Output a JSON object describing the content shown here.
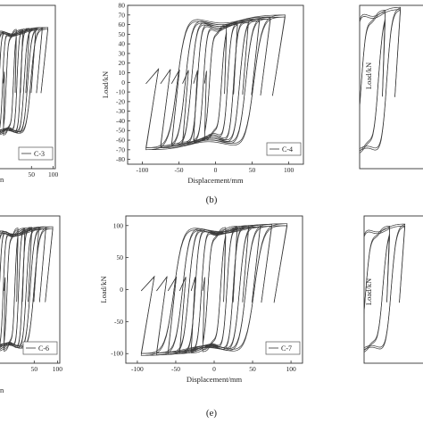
{
  "panel_labels": [
    "(b)",
    "(e)"
  ],
  "partial_texts": {
    "left_top_unit": "n",
    "left_bottom_unit": "n",
    "right_top_ylabel": "Load/kN",
    "right_bottom_ylabel": "Load/kN"
  },
  "chart_data": [
    {
      "id": "C-3",
      "type": "line",
      "title": "",
      "xlabel": "",
      "ylabel": "",
      "xlim": [
        -35,
        105
      ],
      "ylim": [
        -90,
        80
      ],
      "x_ticks": [
        50,
        100
      ],
      "legend": "C-3",
      "legend_position": "bottom-right",
      "grid": false,
      "partially_visible": true,
      "series": [
        {
          "name": "C-3",
          "cycles": [
            {
              "amp": 15,
              "peak": 55
            },
            {
              "amp": 30,
              "peak": 55
            },
            {
              "amp": 45,
              "peak": 56
            },
            {
              "amp": 60,
              "peak": 56
            },
            {
              "amp": 75,
              "peak": 57
            },
            {
              "amp": 88,
              "peak": 57
            }
          ]
        }
      ]
    },
    {
      "id": "C-4",
      "type": "line",
      "title": "",
      "xlabel": "Displacement/mm",
      "ylabel": "Load/kN",
      "xlim": [
        -120,
        120
      ],
      "ylim": [
        -85,
        80
      ],
      "x_ticks": [
        -100,
        -50,
        0,
        50,
        100
      ],
      "y_ticks": [
        -80,
        -70,
        -60,
        -50,
        -40,
        -30,
        -20,
        -10,
        0,
        10,
        20,
        30,
        40,
        50,
        60,
        70,
        80
      ],
      "legend": "C-4",
      "legend_position": "bottom-right",
      "grid": false,
      "series": [
        {
          "name": "C-4",
          "cycles": [
            {
              "amp": 15,
              "peak": 60
            },
            {
              "amp": 30,
              "peak": 62
            },
            {
              "amp": 45,
              "peak": 64
            },
            {
              "amp": 60,
              "peak": 66
            },
            {
              "amp": 75,
              "peak": 68
            },
            {
              "amp": 95,
              "peak": 70
            }
          ]
        }
      ]
    },
    {
      "id": "C-5",
      "type": "line",
      "title": "",
      "xlabel": "",
      "ylabel": "Load/kN",
      "xlim": [
        -10,
        60
      ],
      "ylim": [
        -90,
        80
      ],
      "x_ticks": [],
      "grid": false,
      "partially_visible": true,
      "series": [
        {
          "name": "",
          "cycles": [
            {
              "amp": 15,
              "peak": 75
            },
            {
              "amp": 30,
              "peak": 78
            }
          ]
        }
      ]
    },
    {
      "id": "C-6",
      "type": "line",
      "title": "",
      "xlabel": "",
      "ylabel": "",
      "xlim": [
        -35,
        105
      ],
      "ylim": [
        -110,
        110
      ],
      "x_ticks": [
        50,
        100
      ],
      "legend": "C-6",
      "legend_position": "bottom-right",
      "grid": false,
      "partially_visible": true,
      "series": [
        {
          "name": "C-6",
          "cycles": [
            {
              "amp": 15,
              "peak": 92
            },
            {
              "amp": 30,
              "peak": 92
            },
            {
              "amp": 45,
              "peak": 93
            },
            {
              "amp": 60,
              "peak": 93
            },
            {
              "amp": 75,
              "peak": 94
            },
            {
              "amp": 90,
              "peak": 94
            }
          ]
        }
      ]
    },
    {
      "id": "C-7",
      "type": "line",
      "title": "",
      "xlabel": "Displacement/mm",
      "ylabel": "Load/kN",
      "xlim": [
        -115,
        115
      ],
      "ylim": [
        -115,
        115
      ],
      "x_ticks": [
        -100,
        -50,
        0,
        50,
        100
      ],
      "y_ticks": [
        -100,
        -50,
        0,
        50,
        100
      ],
      "legend": "C-7",
      "legend_position": "bottom-right",
      "grid": false,
      "series": [
        {
          "name": "C-7",
          "cycles": [
            {
              "amp": 15,
              "peak": 97
            },
            {
              "amp": 30,
              "peak": 99
            },
            {
              "amp": 45,
              "peak": 100
            },
            {
              "amp": 60,
              "peak": 101
            },
            {
              "amp": 75,
              "peak": 102
            },
            {
              "amp": 95,
              "peak": 103
            }
          ]
        }
      ]
    },
    {
      "id": "C-8",
      "type": "line",
      "title": "",
      "xlabel": "",
      "ylabel": "Load/kN",
      "xlim": [
        -10,
        60
      ],
      "ylim": [
        -110,
        110
      ],
      "x_ticks": [],
      "grid": false,
      "partially_visible": true,
      "series": [
        {
          "name": "",
          "cycles": [
            {
              "amp": 15,
              "peak": 95
            },
            {
              "amp": 30,
              "peak": 98
            }
          ]
        }
      ]
    }
  ]
}
